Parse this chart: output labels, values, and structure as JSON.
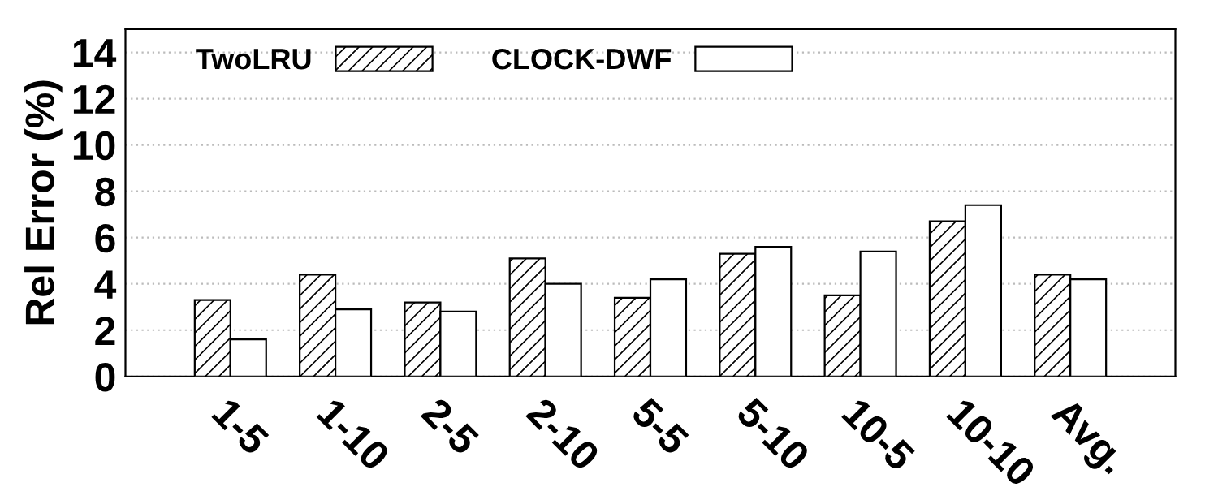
{
  "chart_data": {
    "type": "bar",
    "ylabel": "Rel Error (%)",
    "categories": [
      "1-5",
      "1-10",
      "2-5",
      "2-10",
      "5-5",
      "5-10",
      "10-5",
      "10-10",
      "Avg."
    ],
    "series": [
      {
        "name": "TwoLRU",
        "color": "#000000",
        "values": [
          3.3,
          4.4,
          3.2,
          5.1,
          3.4,
          5.3,
          3.5,
          6.7,
          4.4
        ]
      },
      {
        "name": "CLOCK-DWF",
        "color": "#ffffff",
        "values": [
          1.6,
          2.9,
          2.8,
          4.0,
          4.2,
          5.6,
          5.4,
          7.4,
          4.2
        ]
      }
    ],
    "ylim": [
      0,
      15
    ],
    "yticks": [
      0,
      2,
      4,
      6,
      8,
      10,
      12,
      14
    ],
    "grid": "y",
    "legend": "top left"
  }
}
